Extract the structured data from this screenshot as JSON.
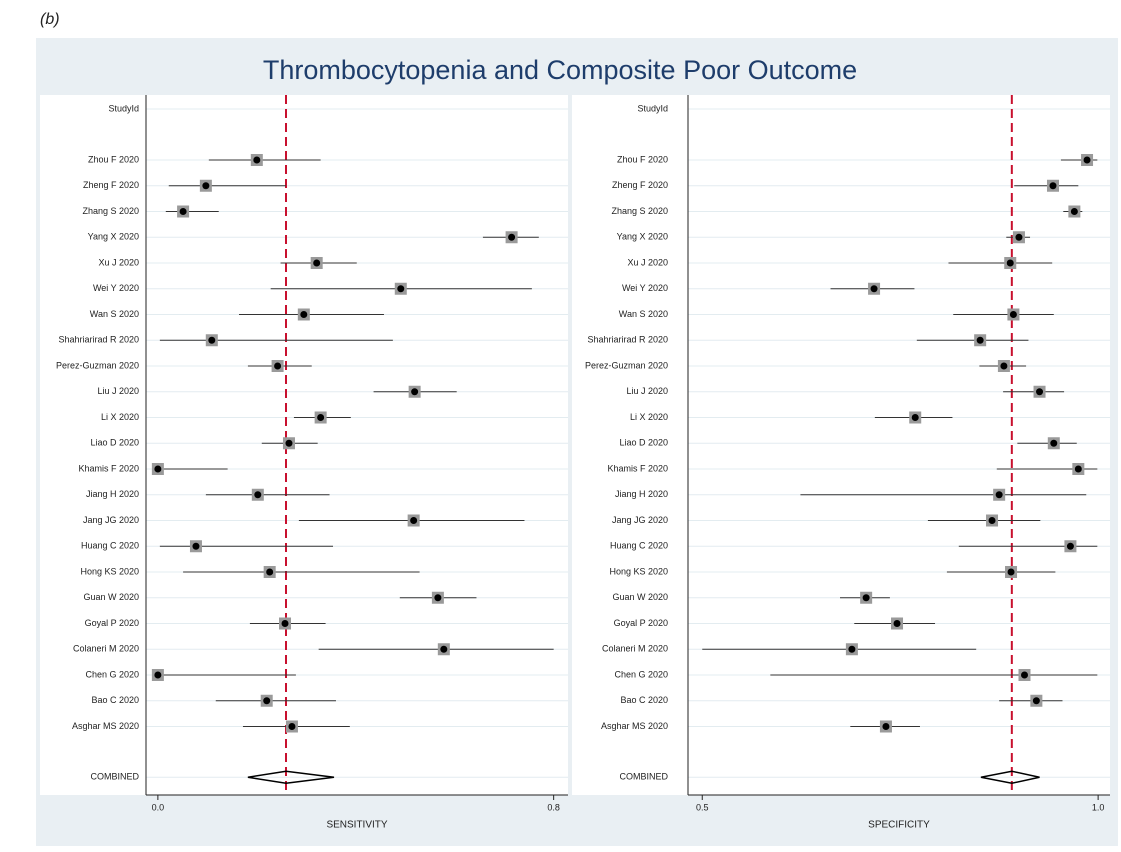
{
  "label": "(b)",
  "title": "Thrombocytopenia and Composite Poor Outcome",
  "chart_data": [
    {
      "type": "forest",
      "category_label": "StudyId",
      "xlabel": "SENSITIVITY",
      "categories": [
        "Zhou F 2020",
        "Zheng F 2020",
        "Zhang S 2020",
        "Yang X 2020",
        "Xu J 2020",
        "Wei Y 2020",
        "Wan S 2020",
        "Shahriarirad R 2020",
        "Perez-Guzman 2020",
        "Liu J 2020",
        "Li X 2020",
        "Liao D 2020",
        "Khamis F 2020",
        "Jiang H 2020",
        "Jang JG 2020",
        "Huang C 2020",
        "Hong KS 2020",
        "Guan W 2020",
        "Goyal P 2020",
        "Colaneri M 2020",
        "Chen G 2020",
        "Bao C 2020",
        "Asghar MS 2020",
        "COMBINED"
      ],
      "values": [
        0.2,
        0.097,
        0.051,
        0.715,
        0.321,
        0.491,
        0.295,
        0.109,
        0.242,
        0.519,
        0.329,
        0.265,
        0,
        0.202,
        0.517,
        0.077,
        0.226,
        0.566,
        0.257,
        0.578,
        0,
        0.22,
        0.271,
        0.259
      ],
      "ci_lower": [
        0.103,
        0.022,
        0.016,
        0.657,
        0.248,
        0.228,
        0.164,
        0.004,
        0.182,
        0.436,
        0.275,
        0.21,
        0,
        0.097,
        0.285,
        0.004,
        0.051,
        0.489,
        0.186,
        0.325,
        0,
        0.117,
        0.172,
        0.182
      ],
      "ci_upper": [
        0.329,
        0.259,
        0.123,
        0.77,
        0.402,
        0.756,
        0.457,
        0.475,
        0.311,
        0.604,
        0.39,
        0.323,
        0.141,
        0.347,
        0.741,
        0.354,
        0.529,
        0.644,
        0.339,
        0.8,
        0.279,
        0.36,
        0.388,
        0.356
      ],
      "xlim": [
        -0.024,
        0.829
      ],
      "xticks": [
        {
          "value": 0,
          "label": "0.0"
        },
        0.8
      ],
      "marker_color": "#000000",
      "box_color": "#9a9a9a",
      "line_color": "#333333",
      "reference_color": "#c8102e",
      "grid": true
    },
    {
      "type": "forest",
      "category_label": "StudyId",
      "xlabel": "SPECIFICITY",
      "categories": [
        "Zhou F 2020",
        "Zheng F 2020",
        "Zhang S 2020",
        "Yang X 2020",
        "Xu J 2020",
        "Wei Y 2020",
        "Wan S 2020",
        "Shahriarirad R 2020",
        "Perez-Guzman 2020",
        "Liu J 2020",
        "Li X 2020",
        "Liao D 2020",
        "Khamis F 2020",
        "Jiang H 2020",
        "Jang JG 2020",
        "Huang C 2020",
        "Hong KS 2020",
        "Guan W 2020",
        "Goyal P 2020",
        "Colaneri M 2020",
        "Chen G 2020",
        "Bao C 2020",
        "Asghar MS 2020",
        "COMBINED"
      ],
      "values": [
        0.986,
        0.943,
        0.97,
        0.9,
        0.889,
        0.717,
        0.893,
        0.851,
        0.881,
        0.926,
        0.769,
        0.944,
        0.975,
        0.875,
        0.866,
        0.965,
        0.89,
        0.707,
        0.746,
        0.689,
        0.907,
        0.922,
        0.732,
        0.891
      ],
      "ci_lower": [
        0.953,
        0.894,
        0.956,
        0.884,
        0.811,
        0.662,
        0.817,
        0.771,
        0.85,
        0.88,
        0.718,
        0.898,
        0.872,
        0.624,
        0.785,
        0.824,
        0.809,
        0.674,
        0.692,
        0.5,
        0.586,
        0.875,
        0.687,
        0.852
      ],
      "ci_upper": [
        0.999,
        0.975,
        0.98,
        0.914,
        0.942,
        0.768,
        0.944,
        0.912,
        0.909,
        0.957,
        0.816,
        0.973,
        0.999,
        0.985,
        0.927,
        0.999,
        0.946,
        0.737,
        0.794,
        0.846,
        0.999,
        0.955,
        0.775,
        0.926
      ],
      "xlim": [
        0.482,
        1.015
      ],
      "xticks": [
        0.5,
        {
          "value": 1,
          "label": "1.0"
        }
      ],
      "marker_color": "#000000",
      "box_color": "#9a9a9a",
      "line_color": "#333333",
      "reference_color": "#c8102e",
      "grid": true
    }
  ]
}
